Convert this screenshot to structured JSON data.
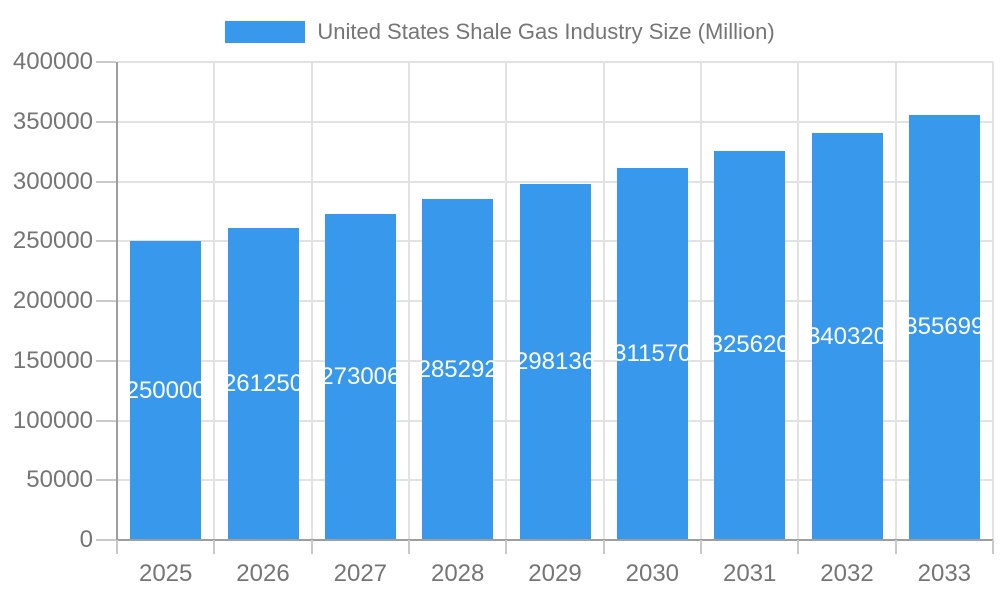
{
  "chart_data": {
    "type": "bar",
    "title": "United States Shale Gas Industry Size (Million)",
    "legend": {
      "label": "United States Shale Gas Industry Size (Million)",
      "position": "top"
    },
    "categories": [
      "2025",
      "2026",
      "2027",
      "2028",
      "2029",
      "2030",
      "2031",
      "2032",
      "2033"
    ],
    "values": [
      250000,
      261250,
      273006,
      285292,
      298136,
      311570,
      325620,
      340320,
      355699
    ],
    "bar_labels": [
      "250000",
      "261250",
      "273006",
      "285292",
      "298136",
      "311570",
      "325620",
      "340320",
      "355699"
    ],
    "xlabel": "",
    "ylabel": "",
    "ylim": [
      0,
      400000
    ],
    "ytick_step": 50000,
    "ytick_labels": [
      "0",
      "50000",
      "100000",
      "150000",
      "200000",
      "250000",
      "300000",
      "350000",
      "400000"
    ],
    "grid": true,
    "colors": {
      "bar": "#3899EC",
      "bar_label_text": "#FFFFFF",
      "axis_text": "#757575",
      "grid_line": "#E2E2E2",
      "axis_line": "#9E9E9E",
      "tick_line": "#C9C9C9",
      "background": "#FFFFFF"
    }
  }
}
